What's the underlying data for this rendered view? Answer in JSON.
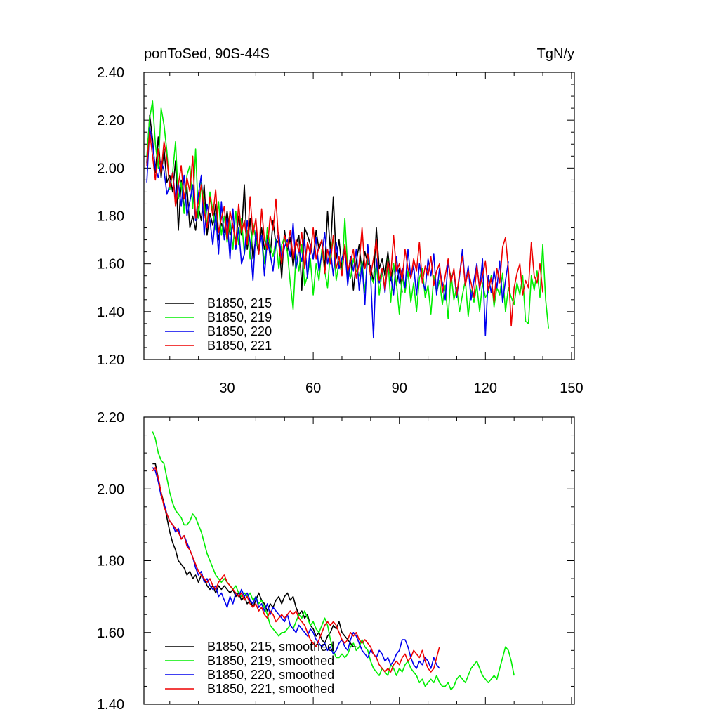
{
  "chart_data": [
    {
      "type": "line",
      "title_left": "ponToSed, 90S-44S",
      "title_right": "TgN/y",
      "xlim": [
        1,
        151
      ],
      "ylim": [
        1.2,
        2.4
      ],
      "xticks": [
        30,
        60,
        90,
        120,
        150
      ],
      "xtick_labels": [
        "30",
        "60",
        "90",
        "120",
        "150"
      ],
      "yticks": [
        1.2,
        1.4,
        1.6,
        1.8,
        2.0,
        2.2,
        2.4
      ],
      "ytick_labels": [
        "1.20",
        "1.40",
        "1.60",
        "1.80",
        "2.00",
        "2.20",
        "2.40"
      ],
      "legend_position": "bottom-left",
      "series": [
        {
          "name": "B1850, 215",
          "color": "#000000",
          "start": 2,
          "values": [
            2.02,
            2.22,
            2.12,
            1.98,
            2.13,
            1.96,
            2.08,
            1.94,
            1.97,
            1.9,
            2.03,
            1.74,
            1.95,
            1.83,
            1.92,
            1.75,
            1.8,
            1.74,
            1.84,
            1.78,
            1.93,
            1.72,
            1.81,
            1.76,
            1.85,
            1.7,
            1.77,
            1.73,
            1.82,
            1.72,
            1.76,
            1.69,
            1.8,
            1.72,
            1.93,
            1.66,
            1.79,
            1.62,
            1.71,
            1.64,
            1.75,
            1.66,
            1.72,
            1.63,
            1.78,
            1.68,
            1.7,
            1.54,
            1.74,
            1.65,
            1.71,
            1.59,
            1.68,
            1.72,
            1.49,
            1.75,
            1.72,
            1.68,
            1.62,
            1.74,
            1.66,
            1.7,
            1.58,
            1.82,
            1.65,
            1.88,
            1.62,
            1.7,
            1.58,
            1.66,
            1.54,
            1.63,
            1.49,
            1.61,
            1.68,
            1.56,
            1.65,
            1.6,
            1.59,
            1.52,
            1.75,
            1.58,
            1.62,
            1.55,
            1.65,
            1.53,
            1.6,
            1.51,
            1.58,
            1.48
          ]
        },
        {
          "name": "B1850, 219",
          "color": "#00ee00",
          "start": 2,
          "values": [
            2.05,
            2.21,
            2.28,
            2.1,
            2.0,
            2.25,
            2.18,
            2.07,
            1.91,
            1.98,
            2.11,
            1.87,
            1.94,
            1.81,
            1.97,
            2.01,
            1.83,
            2.08,
            1.79,
            1.94,
            1.85,
            1.76,
            1.9,
            1.82,
            1.74,
            1.86,
            1.72,
            1.8,
            1.69,
            1.78,
            1.66,
            1.82,
            1.68,
            1.79,
            1.64,
            1.74,
            1.62,
            1.77,
            1.7,
            1.66,
            1.72,
            1.6,
            1.75,
            1.67,
            1.63,
            1.7,
            1.58,
            1.68,
            1.71,
            1.65,
            1.52,
            1.41,
            1.64,
            1.57,
            1.68,
            1.51,
            1.55,
            1.62,
            1.47,
            1.6,
            1.53,
            1.66,
            1.57,
            1.5,
            1.65,
            1.71,
            1.53,
            1.61,
            1.56,
            1.79,
            1.58,
            1.54,
            1.62,
            1.57,
            1.55,
            1.61,
            1.48,
            1.63,
            1.55,
            1.52,
            1.6,
            1.47,
            1.57,
            1.5,
            1.62,
            1.44,
            1.6,
            1.52,
            1.39,
            1.55,
            1.48,
            1.57,
            1.44,
            1.52,
            1.4,
            1.54,
            1.58,
            1.46,
            1.51,
            1.39,
            1.55,
            1.48,
            1.53,
            1.43,
            1.51,
            1.37,
            1.56,
            1.45,
            1.5,
            1.4,
            1.47,
            1.53,
            1.38,
            1.49,
            1.44,
            1.51,
            1.4,
            1.52,
            1.46,
            1.48,
            1.55,
            1.42,
            1.5,
            1.47,
            1.56,
            1.4,
            1.5,
            1.46,
            1.43,
            1.52,
            1.47,
            1.55,
            1.36,
            1.35,
            1.55,
            1.49,
            1.57,
            1.46,
            1.68,
            1.45,
            1.33
          ]
        },
        {
          "name": "B1850, 220",
          "color": "#0000ee",
          "start": 2,
          "values": [
            1.94,
            2.17,
            2.1,
            2.0,
            1.96,
            2.03,
            1.99,
            1.89,
            1.93,
            1.98,
            1.87,
            1.94,
            1.84,
            1.97,
            1.8,
            1.86,
            1.93,
            1.78,
            1.89,
            1.97,
            1.72,
            1.85,
            1.78,
            1.68,
            1.81,
            1.64,
            1.86,
            1.7,
            1.79,
            1.62,
            1.83,
            1.66,
            1.75,
            1.6,
            1.64,
            1.78,
            1.69,
            1.53,
            1.74,
            1.66,
            1.72,
            1.55,
            1.7,
            1.64,
            1.57,
            1.69,
            1.73,
            1.61,
            1.67,
            1.7,
            1.63,
            1.77,
            1.58,
            1.66,
            1.61,
            1.7,
            1.54,
            1.68,
            1.62,
            1.71,
            1.57,
            1.64,
            1.73,
            1.6,
            1.66,
            1.55,
            1.69,
            1.58,
            1.62,
            1.67,
            1.51,
            1.63,
            1.57,
            1.66,
            1.49,
            1.6,
            1.43,
            1.68,
            1.55,
            1.29,
            1.62,
            1.52,
            1.58,
            1.48,
            1.61,
            1.55,
            1.47,
            1.63,
            1.52,
            1.58,
            1.5,
            1.66,
            1.54,
            1.59,
            1.47,
            1.6,
            1.53,
            1.49,
            1.62,
            1.55,
            1.64,
            1.47,
            1.58,
            1.52,
            1.45,
            1.61,
            1.53,
            1.57,
            1.46,
            1.55,
            1.66,
            1.51,
            1.59,
            1.45,
            1.53,
            1.6,
            1.49,
            1.62,
            1.3,
            1.55,
            1.48,
            1.57,
            1.5,
            1.61,
            1.44,
            1.53,
            1.61
          ]
        },
        {
          "name": "B1850, 221",
          "color": "#ee0000",
          "start": 2,
          "values": [
            2.01,
            2.15,
            2.05,
            1.95,
            2.08,
            1.98,
            2.11,
            2.04,
            1.92,
            1.98,
            1.84,
            1.93,
            2.01,
            1.87,
            1.96,
            1.9,
            2.05,
            1.79,
            1.86,
            1.93,
            1.82,
            1.75,
            1.88,
            1.8,
            1.91,
            1.73,
            1.79,
            1.84,
            1.7,
            1.82,
            1.76,
            1.68,
            1.85,
            1.73,
            1.78,
            1.68,
            1.88,
            1.72,
            1.79,
            1.64,
            1.83,
            1.7,
            1.66,
            1.8,
            1.74,
            1.87,
            1.68,
            1.6,
            1.72,
            1.67,
            1.74,
            1.62,
            1.7,
            1.65,
            1.73,
            1.58,
            1.69,
            1.64,
            1.75,
            1.62,
            1.67,
            1.7,
            1.56,
            1.66,
            1.6,
            1.72,
            1.58,
            1.63,
            1.55,
            1.68,
            1.57,
            1.61,
            1.66,
            1.54,
            1.6,
            1.75,
            1.58,
            1.64,
            1.55,
            1.62,
            1.7,
            1.53,
            1.58,
            1.49,
            1.61,
            1.55,
            1.72,
            1.57,
            1.6,
            1.53,
            1.66,
            1.58,
            1.54,
            1.62,
            1.57,
            1.69,
            1.52,
            1.59,
            1.55,
            1.63,
            1.51,
            1.57,
            1.6,
            1.48,
            1.55,
            1.62,
            1.52,
            1.58,
            1.47,
            1.56,
            1.63,
            1.51,
            1.57,
            1.52,
            1.46,
            1.59,
            1.5,
            1.55,
            1.61,
            1.49,
            1.54,
            1.44,
            1.58,
            1.52,
            1.67,
            1.71,
            1.58,
            1.34,
            1.5,
            1.56,
            1.6,
            1.47,
            1.53,
            1.5,
            1.69,
            1.55,
            1.52,
            1.6,
            1.48
          ]
        }
      ]
    },
    {
      "type": "line",
      "xlim": [
        1,
        151
      ],
      "ylim": [
        1.4,
        2.2
      ],
      "xticks": [
        30,
        60,
        90,
        120,
        150
      ],
      "yticks": [
        1.4,
        1.6,
        1.8,
        2.0,
        2.2
      ],
      "ytick_labels": [
        "1.40",
        "1.60",
        "1.80",
        "2.00",
        "2.20"
      ],
      "legend_position": "bottom-left",
      "series": [
        {
          "name": "B1850, 215, smoothed",
          "color": "#000000",
          "start": 4,
          "values": [
            2.07,
            2.07,
            2.03,
            1.99,
            1.96,
            1.92,
            1.88,
            1.85,
            1.83,
            1.8,
            1.79,
            1.78,
            1.76,
            1.77,
            1.75,
            1.76,
            1.74,
            1.76,
            1.75,
            1.73,
            1.72,
            1.73,
            1.71,
            1.73,
            1.72,
            1.73,
            1.72,
            1.71,
            1.72,
            1.7,
            1.71,
            1.69,
            1.7,
            1.68,
            1.69,
            1.67,
            1.69,
            1.71,
            1.69,
            1.68,
            1.66,
            1.68,
            1.67,
            1.69,
            1.7,
            1.68,
            1.7,
            1.71,
            1.69,
            1.7,
            1.67,
            1.65,
            1.66,
            1.64,
            1.65,
            1.62,
            1.61,
            1.59,
            1.6,
            1.58,
            1.57,
            1.59,
            1.6,
            1.62,
            1.61,
            1.63,
            1.6,
            1.59,
            1.58,
            1.57,
            1.56,
            1.56
          ]
        },
        {
          "name": "B1850, 219, smoothed",
          "color": "#00ee00",
          "start": 4,
          "values": [
            2.16,
            2.14,
            2.1,
            2.08,
            2.07,
            2.03,
            1.99,
            1.96,
            1.94,
            1.93,
            1.92,
            1.9,
            1.9,
            1.91,
            1.93,
            1.92,
            1.9,
            1.88,
            1.85,
            1.82,
            1.8,
            1.78,
            1.76,
            1.75,
            1.74,
            1.75,
            1.74,
            1.73,
            1.72,
            1.73,
            1.71,
            1.7,
            1.71,
            1.7,
            1.71,
            1.69,
            1.7,
            1.68,
            1.69,
            1.67,
            1.65,
            1.62,
            1.61,
            1.6,
            1.59,
            1.6,
            1.6,
            1.61,
            1.62,
            1.61,
            1.63,
            1.65,
            1.64,
            1.66,
            1.64,
            1.62,
            1.63,
            1.61,
            1.6,
            1.62,
            1.64,
            1.62,
            1.58,
            1.55,
            1.53,
            1.53,
            1.54,
            1.53,
            1.54,
            1.56,
            1.57,
            1.55,
            1.56,
            1.58,
            1.56,
            1.55,
            1.52,
            1.5,
            1.49,
            1.48,
            1.5,
            1.49,
            1.48,
            1.51,
            1.5,
            1.48,
            1.5,
            1.49,
            1.51,
            1.52,
            1.5,
            1.49,
            1.48,
            1.46,
            1.47,
            1.45,
            1.46,
            1.47,
            1.46,
            1.48,
            1.46,
            1.45,
            1.45,
            1.46,
            1.44,
            1.45,
            1.47,
            1.48,
            1.47,
            1.46,
            1.48,
            1.5,
            1.51,
            1.52,
            1.5,
            1.48,
            1.47,
            1.46,
            1.47,
            1.48,
            1.47,
            1.5,
            1.53,
            1.56,
            1.55,
            1.52,
            1.48
          ]
        },
        {
          "name": "B1850, 220, smoothed",
          "color": "#0000ee",
          "start": 4,
          "values": [
            2.06,
            2.05,
            2.02,
            1.98,
            1.96,
            1.93,
            1.91,
            1.9,
            1.88,
            1.89,
            1.86,
            1.87,
            1.85,
            1.83,
            1.81,
            1.78,
            1.76,
            1.77,
            1.74,
            1.75,
            1.73,
            1.72,
            1.73,
            1.7,
            1.71,
            1.69,
            1.67,
            1.7,
            1.68,
            1.71,
            1.7,
            1.72,
            1.7,
            1.71,
            1.69,
            1.68,
            1.7,
            1.67,
            1.68,
            1.66,
            1.68,
            1.65,
            1.67,
            1.66,
            1.65,
            1.64,
            1.63,
            1.65,
            1.62,
            1.61,
            1.6,
            1.62,
            1.61,
            1.6,
            1.59,
            1.61,
            1.6,
            1.58,
            1.57,
            1.56,
            1.57,
            1.55,
            1.56,
            1.54,
            1.55,
            1.57,
            1.58,
            1.56,
            1.55,
            1.58,
            1.6,
            1.59,
            1.57,
            1.55,
            1.54,
            1.53,
            1.55,
            1.54,
            1.53,
            1.55,
            1.54,
            1.52,
            1.53,
            1.51,
            1.52,
            1.54,
            1.55,
            1.58,
            1.58,
            1.56,
            1.53,
            1.51,
            1.5,
            1.52,
            1.51,
            1.53,
            1.52,
            1.5,
            1.53,
            1.51,
            1.5
          ]
        },
        {
          "name": "B1850, 221, smoothed",
          "color": "#ee0000",
          "start": 4,
          "values": [
            2.05,
            2.06,
            2.03,
            1.99,
            1.95,
            1.93,
            1.91,
            1.9,
            1.89,
            1.88,
            1.86,
            1.87,
            1.84,
            1.83,
            1.81,
            1.79,
            1.77,
            1.76,
            1.75,
            1.74,
            1.75,
            1.73,
            1.72,
            1.74,
            1.75,
            1.76,
            1.74,
            1.73,
            1.72,
            1.71,
            1.7,
            1.71,
            1.69,
            1.7,
            1.68,
            1.67,
            1.68,
            1.66,
            1.67,
            1.65,
            1.64,
            1.66,
            1.65,
            1.63,
            1.64,
            1.65,
            1.64,
            1.65,
            1.66,
            1.65,
            1.66,
            1.64,
            1.63,
            1.62,
            1.6,
            1.58,
            1.57,
            1.56,
            1.58,
            1.6,
            1.62,
            1.63,
            1.62,
            1.63,
            1.62,
            1.6,
            1.58,
            1.57,
            1.58,
            1.6,
            1.59,
            1.6,
            1.58,
            1.57,
            1.58,
            1.57,
            1.56,
            1.54,
            1.53,
            1.51,
            1.5,
            1.49,
            1.5,
            1.49,
            1.51,
            1.52,
            1.51,
            1.53,
            1.54,
            1.52,
            1.53,
            1.55,
            1.54,
            1.53,
            1.55,
            1.52,
            1.5,
            1.49,
            1.5,
            1.53,
            1.56
          ]
        }
      ]
    }
  ]
}
